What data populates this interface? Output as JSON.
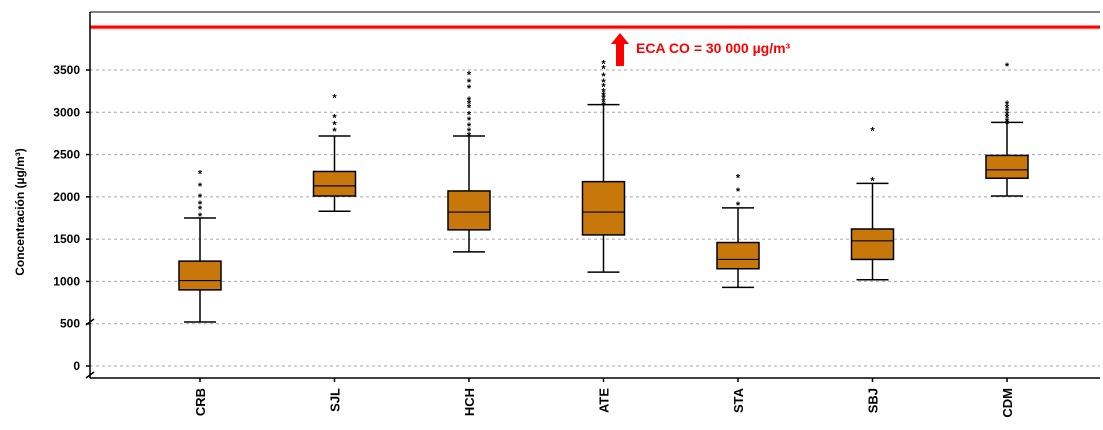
{
  "chart_data": {
    "type": "boxplot",
    "ylabel": "Concentración (µg/m³)",
    "yticks": [
      0,
      500,
      1000,
      1500,
      2000,
      2500,
      3000,
      3500
    ],
    "ylim": [
      -80,
      4000
    ],
    "grid": "horizontal-dashed",
    "box_color": "#c8780a",
    "reference": {
      "label": "ECA CO = 30 000 µg/m³",
      "color": "#ff0000"
    },
    "categories": [
      "CRB",
      "SJL",
      "HCH",
      "ATE",
      "STA",
      "SBJ",
      "CDM"
    ],
    "boxes": [
      {
        "min": 520,
        "q1": 900,
        "median": 1010,
        "q3": 1240,
        "max": 1750,
        "outliers": [
          1800,
          1880,
          1940,
          2020,
          2150,
          2300
        ]
      },
      {
        "min": 1830,
        "q1": 2010,
        "median": 2130,
        "q3": 2300,
        "max": 2720,
        "outliers": [
          2800,
          2880,
          2960,
          3200
        ]
      },
      {
        "min": 1350,
        "q1": 1610,
        "median": 1820,
        "q3": 2070,
        "max": 2720,
        "outliers": [
          2750,
          2800,
          2860,
          2930,
          3000,
          3080,
          3130,
          3170,
          3310,
          3380,
          3470
        ]
      },
      {
        "min": 1110,
        "q1": 1550,
        "median": 1820,
        "q3": 2180,
        "max": 3090,
        "outliers": [
          3110,
          3150,
          3190,
          3230,
          3270,
          3330,
          3380,
          3450,
          3540,
          3600
        ]
      },
      {
        "min": 930,
        "q1": 1150,
        "median": 1260,
        "q3": 1460,
        "max": 1870,
        "outliers": [
          1930,
          2090,
          2250
        ]
      },
      {
        "min": 1020,
        "q1": 1260,
        "median": 1480,
        "q3": 1620,
        "max": 2160,
        "outliers": [
          2220,
          2810
        ]
      },
      {
        "min": 2010,
        "q1": 2220,
        "median": 2320,
        "q3": 2490,
        "max": 2880,
        "outliers": [
          2890,
          2920,
          2960,
          3000,
          3040,
          3080,
          3120,
          3570
        ]
      }
    ]
  }
}
